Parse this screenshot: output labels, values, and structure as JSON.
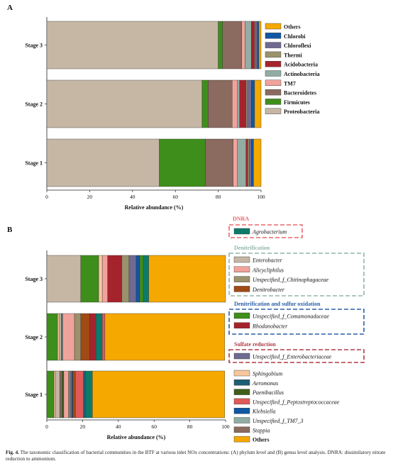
{
  "panels": [
    {
      "letter": "A",
      "xlabel": "Relative abundance (%)",
      "xticks": [
        "0",
        "20",
        "40",
        "60",
        "80",
        "100"
      ],
      "legend_items": [
        {
          "name": "Others",
          "color": "#f5a800"
        },
        {
          "name": "Chlorobi",
          "color": "#0f57a3"
        },
        {
          "name": "Chloroflexi",
          "color": "#6f6a92"
        },
        {
          "name": "Thermi",
          "color": "#9b926c"
        },
        {
          "name": "Acidobacteria",
          "color": "#a5232d"
        },
        {
          "name": "Actinobacteria",
          "color": "#91ada4"
        },
        {
          "name": "TM7",
          "color": "#f0a39b"
        },
        {
          "name": "Bacteroidetes",
          "color": "#8b6a5f"
        },
        {
          "name": "Firmicutes",
          "color": "#3e8e1c"
        },
        {
          "name": "Proteobacteria",
          "color": "#c6b7a5"
        }
      ]
    },
    {
      "letter": "B",
      "xlabel": "Relative abundance (%)",
      "xticks": [
        "0",
        "20",
        "40",
        "60",
        "80",
        "100"
      ],
      "groups": [
        {
          "title": "DNRA",
          "title_color": "#e8676b",
          "box_color": "#e8676b",
          "items": [
            {
              "name": "Agrobacterium",
              "color": "#0e7a6a",
              "italic": true
            }
          ]
        },
        {
          "title": "Denitrification",
          "title_color": "#93b5a9",
          "box_color": "#93b5a9",
          "items": [
            {
              "name": "Enterobacter",
              "color": "#c6b7a5",
              "italic": true
            },
            {
              "name": "Alicycliphilus",
              "color": "#f0a39b",
              "italic": true
            },
            {
              "name": "Unspecified_f_Chitinophagaceae",
              "color": "#9b926c",
              "italic": true
            },
            {
              "name": "Denitrobacter",
              "color": "#a04a14",
              "italic": true
            }
          ]
        },
        {
          "title": "Denitrification and sulfur oxidation",
          "title_color": "#2a5fa8",
          "box_color": "#2a5fa8",
          "items": [
            {
              "name": "Unspecified_f_Comamonadaceae",
              "color": "#3e8e1c",
              "italic": true
            },
            {
              "name": "Rhodanobacter",
              "color": "#a5232d",
              "italic": true
            }
          ]
        },
        {
          "title": "Sulfate reduction",
          "title_color": "#b23a48",
          "box_color": "#b23a48",
          "items": [
            {
              "name": "Unspecified_f_Enterobacteriaceae",
              "color": "#6f6a92",
              "italic": true
            }
          ]
        }
      ],
      "plain_items": [
        {
          "name": "Sphingobium",
          "color": "#f7c69c",
          "italic": true
        },
        {
          "name": "Aeromonas",
          "color": "#1d5f74",
          "italic": true
        },
        {
          "name": "Paenibacillus",
          "color": "#3f5e1a",
          "italic": true
        },
        {
          "name": "Unspecified_f_Peptostreptococcaceae",
          "color": "#e05a5a",
          "italic": true
        },
        {
          "name": "Klebsiella",
          "color": "#0f57a3",
          "italic": true
        },
        {
          "name": "Unspecified_f_TM7_3",
          "color": "#91ada4",
          "italic": true
        },
        {
          "name": "Stappia",
          "color": "#8b6a5f",
          "italic": true
        },
        {
          "name": "Others",
          "color": "#f5a800",
          "italic": false
        }
      ]
    }
  ],
  "caption": {
    "label": "Fig. 4.",
    "text": " The taxonomic classification of bacterial communities in the BTF at various inlet NOx concentrations: (A) phylum level and (B) genus level analysis. DNRA: dissimilatory nitrate reduction to ammonium."
  },
  "chart_data": [
    {
      "type": "bar",
      "orientation": "horizontal",
      "stacked": true,
      "title": "A",
      "xlabel": "Relative abundance (%)",
      "ylabel": "",
      "xlim": [
        0,
        100
      ],
      "categories": [
        "Stage 3",
        "Stage 2",
        "Stage 1"
      ],
      "series": [
        {
          "name": "Proteobacteria",
          "color": "#c6b7a5",
          "values": [
            80.0,
            72.5,
            52.5
          ]
        },
        {
          "name": "Firmicutes",
          "color": "#3e8e1c",
          "values": [
            2.0,
            2.8,
            21.5
          ]
        },
        {
          "name": "Bacteroidetes",
          "color": "#8b6a5f",
          "values": [
            9.0,
            11.2,
            13.0
          ]
        },
        {
          "name": "TM7",
          "color": "#f0a39b",
          "values": [
            1.5,
            2.5,
            2.0
          ]
        },
        {
          "name": "Actinobacteria",
          "color": "#91ada4",
          "values": [
            3.0,
            1.0,
            4.0
          ]
        },
        {
          "name": "Acidobacteria",
          "color": "#a5232d",
          "values": [
            1.5,
            3.0,
            0.8
          ]
        },
        {
          "name": "Thermi",
          "color": "#9b926c",
          "values": [
            0.5,
            0.7,
            0.7
          ]
        },
        {
          "name": "Chloroflexi",
          "color": "#6f6a92",
          "values": [
            0.8,
            1.8,
            1.0
          ]
        },
        {
          "name": "Chlorobi",
          "color": "#0f57a3",
          "values": [
            0.7,
            1.5,
            1.0
          ]
        },
        {
          "name": "Others",
          "color": "#f5a800",
          "values": [
            1.0,
            3.0,
            3.5
          ]
        }
      ]
    },
    {
      "type": "bar",
      "orientation": "horizontal",
      "stacked": true,
      "title": "B",
      "xlabel": "Relative abundance (%)",
      "ylabel": "",
      "xlim": [
        0,
        100
      ],
      "categories": [
        "Stage 3",
        "Stage 2",
        "Stage 1"
      ],
      "series": [
        {
          "name": "Unspecified_f_Comamonadaceae",
          "color": "#3e8e1c",
          "values": [
            0.0,
            6.0,
            4.0
          ]
        },
        {
          "name": "Sphingobium",
          "color": "#f7c69c",
          "values": [
            0.0,
            1.0,
            0.8
          ]
        },
        {
          "name": "Enterobacter",
          "color": "#c6b7a5",
          "values": [
            19.0,
            1.0,
            2.4
          ]
        },
        {
          "name": "Stappia",
          "color": "#8b6a5f",
          "values": [
            0.0,
            0.5,
            0.8
          ]
        },
        {
          "name": "Unspecified_f_TM7_3",
          "color": "#91ada4",
          "values": [
            0.0,
            0.5,
            0.5
          ]
        },
        {
          "name": "Paenibacillus",
          "color": "#3f5e1a",
          "values": [
            0.0,
            0.0,
            1.0
          ]
        },
        {
          "name": "Alicycliphilus",
          "color": "#f0a39b",
          "values": [
            0.0,
            6.5,
            2.5
          ]
        },
        {
          "name": "Unspecified_f_Chitinophagaceae",
          "color": "#9b926c",
          "values": [
            0.0,
            3.5,
            1.0
          ]
        },
        {
          "name": "Unspecified_f_Enterobacteriaceae",
          "color": "#6f6a92",
          "values": [
            0.0,
            0.0,
            1.0
          ]
        },
        {
          "name": "Klebsiella",
          "color": "#0f57a3",
          "values": [
            0.0,
            0.0,
            0.5
          ]
        },
        {
          "name": "Denitrobacter",
          "color": "#a04a14",
          "values": [
            0.0,
            5.0,
            1.5
          ]
        },
        {
          "name": "Unspecified_f_Peptostreptococcaceae",
          "color": "#e05a5a",
          "values": [
            0.0,
            0.0,
            4.5
          ]
        },
        {
          "name": "Aeromonas",
          "color": "#1d5f74",
          "values": [
            0.0,
            0.0,
            1.0
          ]
        },
        {
          "name": "Agrobacterium",
          "color": "#0e7a6a",
          "values": [
            0.0,
            0.0,
            4.0
          ]
        },
        {
          "name": "Sphingobium",
          "color": "#f7c69c",
          "values": [
            0.0,
            0.0,
            0.0
          ]
        },
        {
          "name": "Unspecified_f_Comamonadaceae",
          "color": "#3e8e1c",
          "values": [
            10.0,
            0.0,
            0.0
          ]
        },
        {
          "name": "Sphingobium",
          "color": "#f7c69c",
          "values": [
            2.0,
            0.0,
            0.0
          ]
        },
        {
          "name": "Alicycliphilus",
          "color": "#f0a39b",
          "values": [
            3.0,
            0.0,
            0.0
          ]
        },
        {
          "name": "Rhodanobacter",
          "color": "#a5232d",
          "values": [
            8.0,
            3.5,
            0.0
          ]
        },
        {
          "name": "Unspecified_f_Chitinophagaceae",
          "color": "#9b926c",
          "values": [
            4.0,
            0.0,
            0.0
          ]
        },
        {
          "name": "Unspecified_f_Enterobacteriaceae",
          "color": "#6f6a92",
          "values": [
            4.0,
            0.0,
            0.0
          ]
        },
        {
          "name": "Klebsiella",
          "color": "#0f57a3",
          "values": [
            2.0,
            0.0,
            0.0
          ]
        },
        {
          "name": "Unspecified_f_Comamonadaceae",
          "color": "#3e8e1c",
          "values": [
            2.0,
            0.0,
            0.0
          ]
        },
        {
          "name": "Agrobacterium",
          "color": "#0e7a6a",
          "values": [
            3.0,
            3.5,
            0.0
          ]
        },
        {
          "name": "Unspecified_f_Peptostreptococcaceae",
          "color": "#e05a5a",
          "values": [
            0.0,
            1.5,
            0.0
          ]
        },
        {
          "name": "Others",
          "color": "#f5a800",
          "values": [
            43.0,
            67.0,
            74.0
          ]
        }
      ]
    }
  ]
}
